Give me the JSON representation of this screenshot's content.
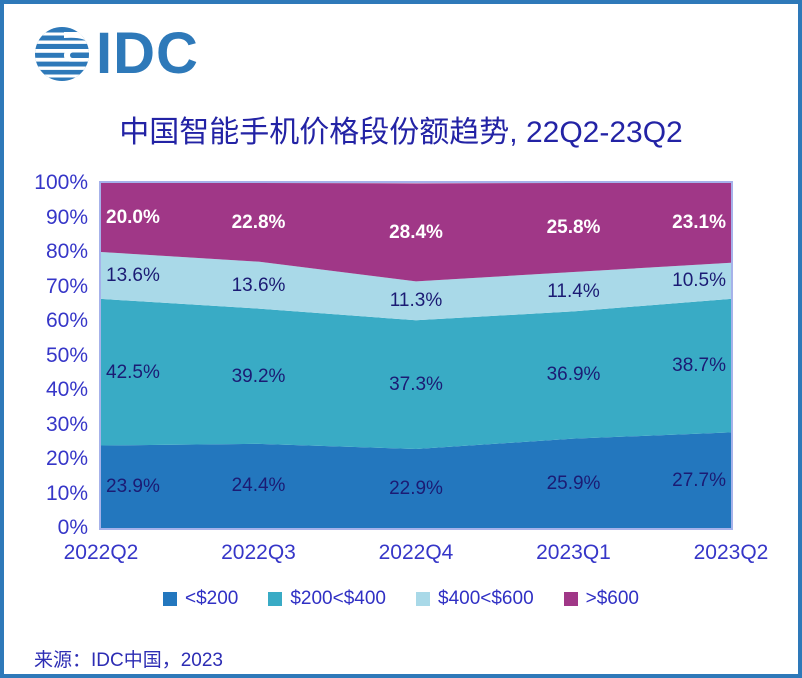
{
  "window": {
    "frame_color": "#2E79B9",
    "background": "#ffffff"
  },
  "logo": {
    "text": "IDC",
    "color": "#2E79B9",
    "icon": "striped-globe-icon"
  },
  "title": {
    "text": "中国智能手机价格段份额趋势, 22Q2-23Q2",
    "color": "#2323A5"
  },
  "chart_data": {
    "type": "area",
    "stacked": true,
    "title": "中国智能手机价格段份额趋势, 22Q2-23Q2",
    "categories": [
      "2022Q2",
      "2022Q3",
      "2022Q4",
      "2023Q1",
      "2023Q2"
    ],
    "series": [
      {
        "name": "<$200",
        "color": "#2377BE",
        "values": [
          23.9,
          24.4,
          22.9,
          25.9,
          27.7
        ],
        "label_color": "#1B1B74",
        "label_bold": false
      },
      {
        "name": "$200<$400",
        "color": "#39ABC5",
        "values": [
          42.5,
          39.2,
          37.3,
          36.9,
          38.7
        ],
        "label_color": "#1B1B74",
        "label_bold": false
      },
      {
        "name": "$400<$600",
        "color": "#A9D9E8",
        "values": [
          13.6,
          13.6,
          11.3,
          11.4,
          10.5
        ],
        "label_color": "#1B1B74",
        "label_bold": false
      },
      {
        "name": ">$600",
        "color": "#A03787",
        "values": [
          20.0,
          22.8,
          28.4,
          25.8,
          23.1
        ],
        "label_color": "#FFFFFF",
        "label_bold": true
      }
    ],
    "y_ticks": [
      "0%",
      "10%",
      "20%",
      "30%",
      "40%",
      "50%",
      "60%",
      "70%",
      "80%",
      "90%",
      "100%"
    ],
    "ylim": [
      0,
      100
    ],
    "xlabel": "",
    "ylabel": "",
    "grid": false,
    "legend_position": "bottom",
    "plot_border_color": "#A6B2EA",
    "tick_color": "#3636C8"
  },
  "source": {
    "text": "来源：IDC中国，2023"
  }
}
